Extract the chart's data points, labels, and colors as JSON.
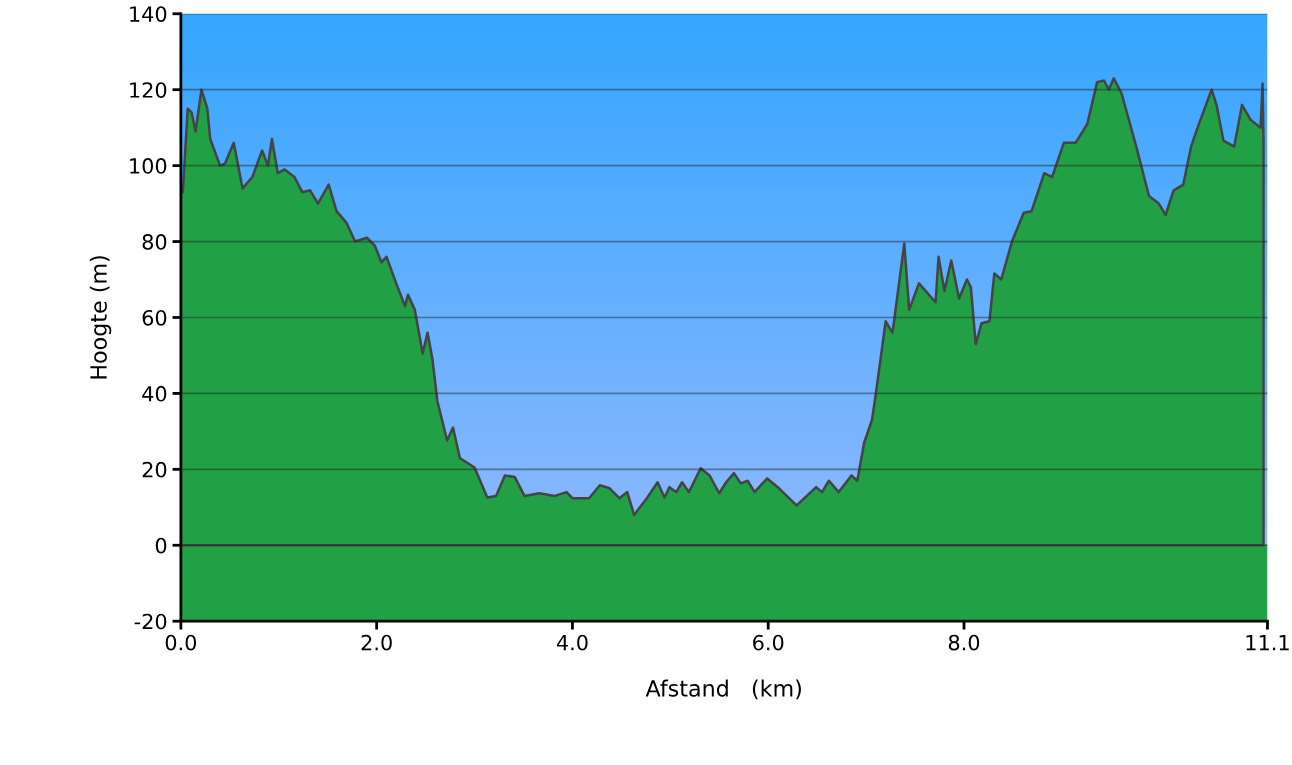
{
  "chart_data": {
    "type": "area",
    "xlabel": "Afstand   (km)",
    "ylabel": "Hoogte (m)",
    "xlim": [
      0,
      11.1
    ],
    "ylim": [
      -20,
      140
    ],
    "xticks": [
      {
        "value": 0,
        "label": "0.0"
      },
      {
        "value": 2,
        "label": "2.0"
      },
      {
        "value": 4,
        "label": "4.0"
      },
      {
        "value": 6,
        "label": "6.0"
      },
      {
        "value": 8,
        "label": "8.0"
      },
      11.1
    ],
    "yticks": [
      -20,
      0,
      20,
      40,
      60,
      80,
      100,
      120,
      140
    ],
    "grid": "y",
    "legend": false,
    "line_style": "solid",
    "series": [
      {
        "color": "#22a045",
        "x": [
          0.0,
          0.02,
          0.07,
          0.11,
          0.15,
          0.21,
          0.27,
          0.3,
          0.4,
          0.45,
          0.54,
          0.63,
          0.73,
          0.83,
          0.89,
          0.93,
          0.99,
          1.06,
          1.16,
          1.24,
          1.32,
          1.4,
          1.51,
          1.59,
          1.69,
          1.78,
          1.9,
          1.98,
          2.05,
          2.1,
          2.2,
          2.29,
          2.32,
          2.39,
          2.47,
          2.52,
          2.57,
          2.62,
          2.72,
          2.78,
          2.85,
          3.0,
          3.13,
          3.22,
          3.31,
          3.41,
          3.51,
          3.66,
          3.82,
          3.94,
          4.0,
          4.17,
          4.28,
          4.38,
          4.48,
          4.56,
          4.63,
          4.76,
          4.87,
          4.94,
          4.99,
          5.06,
          5.12,
          5.19,
          5.31,
          5.4,
          5.5,
          5.57,
          5.65,
          5.72,
          5.79,
          5.86,
          5.99,
          6.11,
          6.29,
          6.49,
          6.55,
          6.62,
          6.72,
          6.85,
          6.91,
          6.98,
          7.06,
          7.1,
          7.2,
          7.27,
          7.39,
          7.44,
          7.54,
          7.71,
          7.74,
          7.8,
          7.87,
          7.95,
          8.03,
          8.07,
          8.12,
          8.18,
          8.26,
          8.31,
          8.38,
          8.49,
          8.61,
          8.69,
          8.82,
          8.9,
          9.02,
          9.14,
          9.26,
          9.36,
          9.43,
          9.48,
          9.53,
          9.61,
          9.76,
          9.89,
          9.99,
          10.06,
          10.14,
          10.24,
          10.32,
          10.4,
          10.53,
          10.58,
          10.65,
          10.76,
          10.84,
          10.93,
          11.03,
          11.05,
          11.06
        ],
        "values": [
          93,
          93,
          115,
          114,
          109,
          120,
          115,
          107,
          100,
          100.5,
          106,
          94,
          97,
          104,
          100,
          107,
          98,
          99,
          97,
          93,
          93.5,
          90,
          95,
          88,
          85,
          80,
          81,
          79,
          74.5,
          76,
          69,
          63,
          66,
          62,
          50.5,
          56,
          49,
          38,
          27.6,
          31,
          23,
          20.5,
          12.6,
          13,
          18.4,
          18,
          13,
          13.7,
          13,
          14,
          12.4,
          12.4,
          15.8,
          15,
          12.4,
          14,
          8,
          12.4,
          16.6,
          12.6,
          15.3,
          14,
          16.6,
          14,
          20.3,
          18.4,
          13.7,
          16.6,
          19,
          16.3,
          17,
          14,
          17.6,
          15,
          10.5,
          15.3,
          14,
          17,
          14,
          18.4,
          17,
          27,
          33,
          40,
          59,
          56,
          79.5,
          62,
          69,
          64,
          76,
          67,
          75,
          65,
          70,
          68,
          53,
          58.5,
          59,
          71.6,
          70,
          80,
          87.6,
          88,
          98,
          97,
          106,
          106,
          111,
          122,
          122.4,
          120,
          123,
          119,
          105,
          92,
          90,
          87,
          93.4,
          95,
          105,
          111,
          120,
          116,
          106.6,
          105,
          116,
          112,
          110,
          121.6,
          106
        ]
      }
    ]
  }
}
